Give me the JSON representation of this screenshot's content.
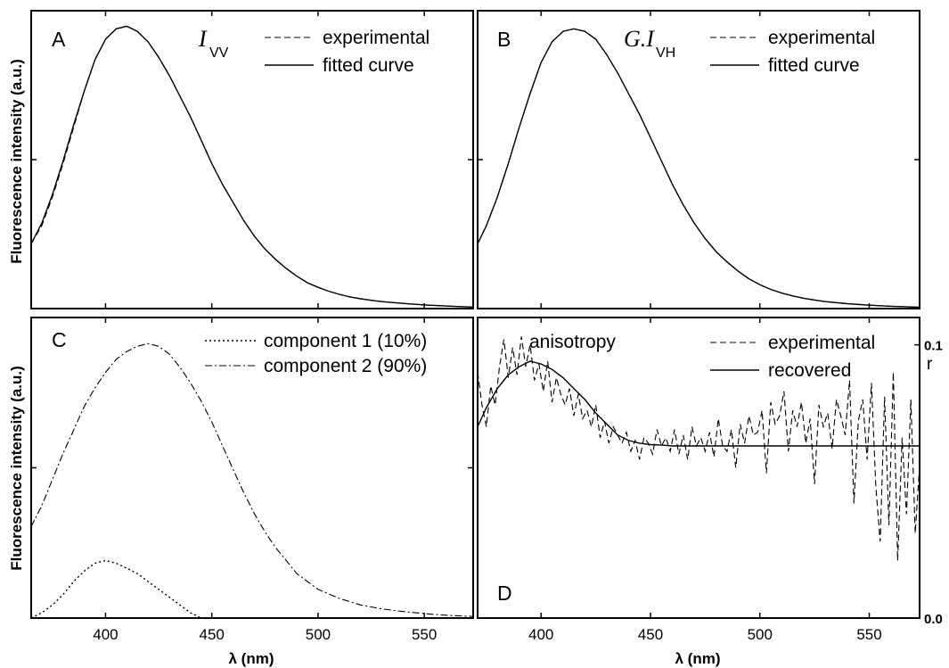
{
  "figure": {
    "ylabel": "Fluorescence intensity (a.u.)",
    "xlabel": "λ (nm)",
    "x_ticks": [
      "400",
      "450",
      "500",
      "550"
    ]
  },
  "chart_data": [
    {
      "panel": "A",
      "type": "line",
      "xlim": [
        365,
        573
      ],
      "ylim": [
        0,
        1.15
      ],
      "annotation": {
        "symbol": "I",
        "subscript": "VV"
      },
      "xlabel": "",
      "ylabel": "Fluorescence intensity (a.u.)",
      "series": [
        {
          "name": "experimental",
          "style": "dashed",
          "x": [
            365,
            370,
            375,
            380,
            385,
            390,
            395,
            400,
            405,
            410,
            415,
            420,
            425,
            430,
            435,
            440,
            445,
            450,
            455,
            460,
            465,
            470,
            475,
            480,
            485,
            490,
            495,
            500,
            505,
            510,
            515,
            520,
            525,
            530,
            540,
            550,
            560,
            573
          ],
          "y": [
            0.25,
            0.32,
            0.43,
            0.56,
            0.7,
            0.84,
            0.96,
            1.04,
            1.08,
            1.09,
            1.07,
            1.03,
            0.97,
            0.9,
            0.82,
            0.74,
            0.65,
            0.56,
            0.48,
            0.41,
            0.34,
            0.28,
            0.23,
            0.19,
            0.155,
            0.125,
            0.1,
            0.082,
            0.067,
            0.055,
            0.045,
            0.038,
            0.032,
            0.027,
            0.02,
            0.014,
            0.01,
            0.006
          ]
        },
        {
          "name": "fitted curve",
          "style": "solid",
          "x": [
            365,
            370,
            375,
            380,
            385,
            390,
            395,
            400,
            405,
            410,
            415,
            420,
            425,
            430,
            435,
            440,
            445,
            450,
            455,
            460,
            465,
            470,
            475,
            480,
            485,
            490,
            495,
            500,
            505,
            510,
            515,
            520,
            525,
            530,
            540,
            550,
            560,
            573
          ],
          "y": [
            0.25,
            0.33,
            0.44,
            0.57,
            0.71,
            0.84,
            0.96,
            1.04,
            1.08,
            1.09,
            1.07,
            1.03,
            0.97,
            0.9,
            0.82,
            0.74,
            0.65,
            0.56,
            0.48,
            0.41,
            0.34,
            0.28,
            0.23,
            0.19,
            0.155,
            0.125,
            0.1,
            0.082,
            0.067,
            0.055,
            0.045,
            0.038,
            0.032,
            0.027,
            0.02,
            0.014,
            0.01,
            0.006
          ]
        }
      ]
    },
    {
      "panel": "B",
      "type": "line",
      "xlim": [
        371,
        573
      ],
      "ylim": [
        0,
        1.15
      ],
      "annotation": {
        "symbol": "G.I",
        "subscript": "VH"
      },
      "series": [
        {
          "name": "experimental",
          "style": "dashed",
          "x": [
            371,
            375,
            380,
            385,
            390,
            395,
            400,
            405,
            410,
            415,
            420,
            425,
            430,
            435,
            440,
            445,
            450,
            455,
            460,
            465,
            470,
            475,
            480,
            485,
            490,
            495,
            500,
            505,
            510,
            515,
            520,
            525,
            530,
            540,
            550,
            560,
            573
          ],
          "y": [
            0.25,
            0.32,
            0.43,
            0.56,
            0.7,
            0.83,
            0.95,
            1.03,
            1.07,
            1.08,
            1.07,
            1.04,
            0.98,
            0.91,
            0.83,
            0.75,
            0.66,
            0.57,
            0.48,
            0.4,
            0.33,
            0.27,
            0.22,
            0.18,
            0.145,
            0.115,
            0.092,
            0.074,
            0.06,
            0.049,
            0.04,
            0.033,
            0.027,
            0.019,
            0.013,
            0.009,
            0.005
          ]
        },
        {
          "name": "fitted curve",
          "style": "solid",
          "x": [
            371,
            375,
            380,
            385,
            390,
            395,
            400,
            405,
            410,
            415,
            420,
            425,
            430,
            435,
            440,
            445,
            450,
            455,
            460,
            465,
            470,
            475,
            480,
            485,
            490,
            495,
            500,
            505,
            510,
            515,
            520,
            525,
            530,
            540,
            550,
            560,
            573
          ],
          "y": [
            0.25,
            0.32,
            0.43,
            0.56,
            0.7,
            0.83,
            0.95,
            1.03,
            1.07,
            1.08,
            1.07,
            1.04,
            0.98,
            0.91,
            0.83,
            0.75,
            0.66,
            0.57,
            0.48,
            0.4,
            0.33,
            0.27,
            0.22,
            0.18,
            0.145,
            0.115,
            0.092,
            0.074,
            0.06,
            0.049,
            0.04,
            0.033,
            0.027,
            0.019,
            0.013,
            0.009,
            0.005
          ]
        }
      ]
    },
    {
      "panel": "C",
      "type": "line",
      "xlim": [
        365,
        573
      ],
      "ylim": [
        0,
        1.15
      ],
      "series": [
        {
          "name": "component 1 (10%)",
          "style": "dotted",
          "x": [
            365,
            370,
            375,
            380,
            385,
            390,
            395,
            400,
            405,
            410,
            415,
            420,
            425,
            430,
            435,
            440,
            445
          ],
          "y": [
            0.0,
            0.02,
            0.05,
            0.09,
            0.14,
            0.18,
            0.21,
            0.22,
            0.21,
            0.19,
            0.17,
            0.14,
            0.11,
            0.08,
            0.05,
            0.02,
            0.0
          ]
        },
        {
          "name": "component 2 (90%)",
          "style": "dashdot",
          "x": [
            365,
            370,
            375,
            380,
            385,
            390,
            395,
            400,
            405,
            410,
            415,
            420,
            425,
            430,
            435,
            440,
            445,
            450,
            455,
            460,
            465,
            470,
            475,
            480,
            485,
            490,
            495,
            500,
            510,
            520,
            530,
            540,
            550,
            560,
            573
          ],
          "y": [
            0.35,
            0.43,
            0.53,
            0.63,
            0.72,
            0.81,
            0.88,
            0.94,
            0.99,
            1.02,
            1.04,
            1.05,
            1.04,
            1.01,
            0.96,
            0.9,
            0.83,
            0.75,
            0.66,
            0.57,
            0.48,
            0.4,
            0.33,
            0.27,
            0.22,
            0.17,
            0.14,
            0.11,
            0.075,
            0.05,
            0.035,
            0.025,
            0.017,
            0.011,
            0.006
          ]
        }
      ]
    },
    {
      "panel": "D",
      "type": "line",
      "xlim": [
        371,
        573
      ],
      "ylim": [
        0.0,
        0.11
      ],
      "y2label": "r",
      "y_ticks": [
        "0.0",
        "0.1"
      ],
      "title": "anisotropy",
      "series": [
        {
          "name": "experimental",
          "style": "dashed",
          "x": [
            371,
            373,
            375,
            377,
            379,
            381,
            383,
            385,
            387,
            389,
            391,
            393,
            395,
            397,
            399,
            401,
            403,
            405,
            407,
            409,
            411,
            413,
            415,
            417,
            419,
            421,
            423,
            425,
            427,
            429,
            431,
            433,
            435,
            437,
            439,
            441,
            443,
            445,
            447,
            449,
            451,
            453,
            455,
            457,
            459,
            461,
            463,
            465,
            467,
            469,
            471,
            473,
            475,
            477,
            479,
            481,
            483,
            485,
            487,
            489,
            491,
            493,
            495,
            497,
            499,
            501,
            503,
            505,
            507,
            509,
            511,
            513,
            515,
            517,
            519,
            521,
            523,
            525,
            527,
            529,
            531,
            533,
            535,
            537,
            539,
            541,
            543,
            545,
            547,
            549,
            551,
            553,
            555,
            557,
            559,
            561,
            563,
            565,
            567,
            569,
            571,
            573
          ],
          "y": [
            0.09,
            0.078,
            0.07,
            0.085,
            0.078,
            0.092,
            0.102,
            0.088,
            0.099,
            0.089,
            0.103,
            0.092,
            0.1,
            0.087,
            0.093,
            0.083,
            0.094,
            0.079,
            0.088,
            0.082,
            0.078,
            0.084,
            0.074,
            0.082,
            0.073,
            0.076,
            0.07,
            0.078,
            0.066,
            0.072,
            0.064,
            0.07,
            0.067,
            0.064,
            0.068,
            0.061,
            0.065,
            0.058,
            0.066,
            0.064,
            0.06,
            0.069,
            0.063,
            0.066,
            0.061,
            0.069,
            0.06,
            0.067,
            0.058,
            0.07,
            0.063,
            0.066,
            0.061,
            0.068,
            0.059,
            0.073,
            0.063,
            0.061,
            0.069,
            0.055,
            0.071,
            0.064,
            0.074,
            0.067,
            0.068,
            0.076,
            0.053,
            0.079,
            0.071,
            0.074,
            0.083,
            0.061,
            0.076,
            0.07,
            0.079,
            0.064,
            0.073,
            0.049,
            0.078,
            0.07,
            0.075,
            0.062,
            0.08,
            0.074,
            0.067,
            0.087,
            0.042,
            0.072,
            0.08,
            0.058,
            0.086,
            0.048,
            0.028,
            0.081,
            0.034,
            0.09,
            0.021,
            0.066,
            0.038,
            0.08,
            0.031,
            0.056
          ]
        },
        {
          "name": "recovered",
          "style": "solid",
          "x": [
            371,
            375,
            380,
            385,
            390,
            395,
            400,
            405,
            410,
            415,
            420,
            425,
            430,
            435,
            440,
            445,
            450,
            455,
            460,
            470,
            480,
            500,
            520,
            540,
            560,
            573
          ],
          "y": [
            0.07,
            0.077,
            0.084,
            0.089,
            0.092,
            0.094,
            0.093,
            0.091,
            0.088,
            0.084,
            0.08,
            0.075,
            0.071,
            0.067,
            0.065,
            0.064,
            0.0635,
            0.0633,
            0.063,
            0.063,
            0.063,
            0.063,
            0.063,
            0.063,
            0.063,
            0.063
          ]
        }
      ]
    }
  ]
}
